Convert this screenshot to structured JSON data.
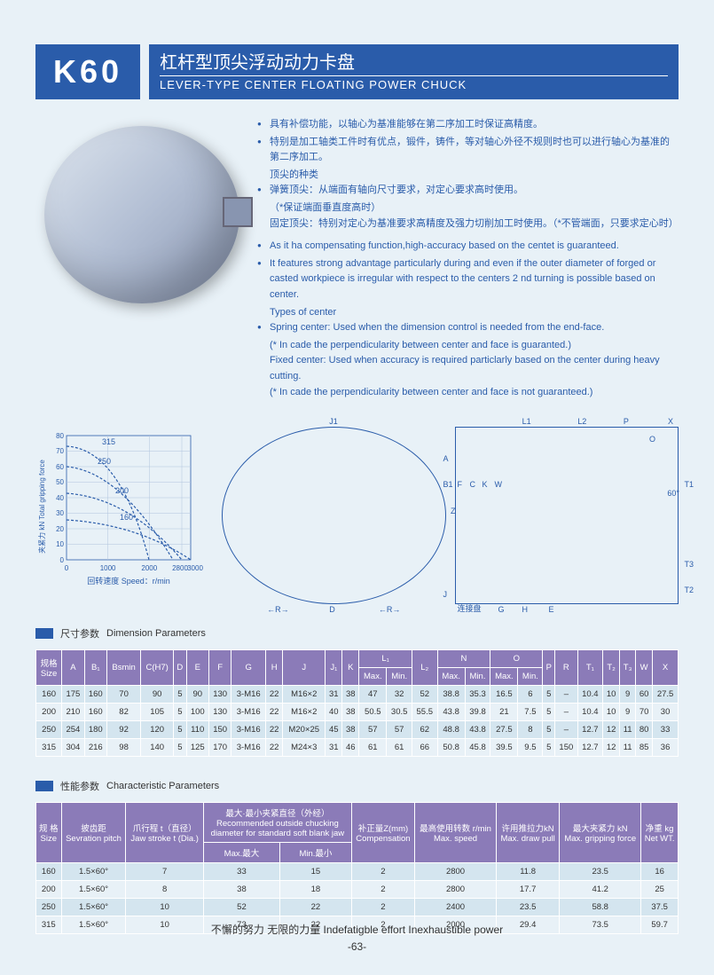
{
  "header": {
    "code": "K60",
    "title_cn": "杠杆型顶尖浮动动力卡盘",
    "title_en": "LEVER-TYPE CENTER FLOATING POWER CHUCK"
  },
  "features_cn": [
    "具有补偿功能，以轴心为基准能够在第二序加工时保证高精度。",
    "特别是加工轴类工件时有优点，锻件，铸件，等对轴心外径不规则时也可以进行轴心为基准的第二序加工。",
    "顶尖的种类",
    "弹簧顶尖：从端面有轴向尺寸要求，对定心要求高时使用。",
    "（*保证端面垂直度高时）",
    "固定顶尖：特别对定心为基准要求高精度及强力切削加工时使用。（*不管端面，只要求定心时）"
  ],
  "features_en": [
    "As it ha compensating function,high-accuracy based on the centet is guaranteed.",
    "It features strong advantage particularly during and even if the outer diameter of forged or casted workpiece is irregular with respect to the centers 2 nd turning is possible based on center.",
    "Types of center",
    "Spring center: Used when the dimension control is needed from the end-face.",
    "(* In cade the perpendicularity between center and face is guaranted.)",
    "Fixed center:  Used when accuracy is required particlarly based on the center during heavy cutting.",
    "(* In cade the perpendicularity between center and face is not guaranteed.)"
  ],
  "chart": {
    "y_label_cn": "夹紧力  kN  Total gripping force",
    "x_label": "回转速度   Speed：r/min",
    "y_ticks": [
      0,
      10,
      20,
      30,
      40,
      50,
      60,
      70,
      80
    ],
    "x_ticks": [
      0,
      1000,
      2000,
      2800,
      3000
    ],
    "curves": [
      "315",
      "250",
      "200",
      "160"
    ],
    "line_color": "#2a5caa",
    "grid_color": "#b0c4de",
    "bg_color": "#e8f1f7"
  },
  "tech_labels": {
    "front": [
      "J1",
      "A",
      "B1",
      "F",
      "C",
      "K",
      "W",
      "Z",
      "J",
      "D",
      "R",
      "R",
      "连接盘",
      "G",
      "H",
      "E"
    ],
    "side": [
      "L1",
      "L2",
      "P",
      "X",
      "O",
      "60°",
      "T1",
      "T3",
      "T2"
    ]
  },
  "section1": {
    "cn": "尺寸参数",
    "en": "Dimension Parameters"
  },
  "section2": {
    "cn": "性能参数",
    "en": "Characteristic Parameters"
  },
  "dim_table": {
    "columns_r1": [
      "规格\nSize",
      "A",
      "B₁",
      "Bsmin",
      "C(H7)",
      "D",
      "E",
      "F",
      "G",
      "H",
      "J",
      "J₁",
      "K",
      "L₁",
      "",
      "L₂",
      "N",
      "",
      "O",
      "",
      "P",
      "R",
      "T₁",
      "T₂",
      "T₃",
      "W",
      "X"
    ],
    "columns_r2": [
      "",
      "",
      "",
      "",
      "",
      "",
      "",
      "",
      "",
      "",
      "",
      "",
      "",
      "Max.",
      "Min.",
      "",
      "Max.",
      "Min.",
      "Max.",
      "Min.",
      "",
      "",
      "",
      "",
      "",
      "",
      ""
    ],
    "rows": [
      [
        "160",
        "175",
        "160",
        "70",
        "90",
        "5",
        "90",
        "130",
        "3-M16",
        "22",
        "M16×2",
        "31",
        "38",
        "47",
        "32",
        "52",
        "38.8",
        "35.3",
        "16.5",
        "6",
        "5",
        "–",
        "10.4",
        "10",
        "9",
        "60",
        "27.5"
      ],
      [
        "200",
        "210",
        "160",
        "82",
        "105",
        "5",
        "100",
        "130",
        "3-M16",
        "22",
        "M16×2",
        "40",
        "38",
        "50.5",
        "30.5",
        "55.5",
        "43.8",
        "39.8",
        "21",
        "7.5",
        "5",
        "–",
        "10.4",
        "10",
        "9",
        "70",
        "30"
      ],
      [
        "250",
        "254",
        "180",
        "92",
        "120",
        "5",
        "110",
        "150",
        "3-M16",
        "22",
        "M20×25",
        "45",
        "38",
        "57",
        "57",
        "62",
        "48.8",
        "43.8",
        "27.5",
        "8",
        "5",
        "–",
        "12.7",
        "12",
        "11",
        "80",
        "33"
      ],
      [
        "315",
        "304",
        "216",
        "98",
        "140",
        "5",
        "125",
        "170",
        "3-M16",
        "22",
        "M24×3",
        "31",
        "46",
        "61",
        "61",
        "66",
        "50.8",
        "45.8",
        "39.5",
        "9.5",
        "5",
        "150",
        "12.7",
        "12",
        "11",
        "85",
        "36"
      ]
    ]
  },
  "char_table": {
    "columns_r1": [
      "规 格\nSize",
      "披齿距\nSevration pitch",
      "爪行程 t（直径）\nJaw stroke t (Dia.)",
      "最大·最小夹紧直径（外经）\nRecommended outside chucking\ndiameter for standard soft blank jaw",
      "",
      "补正量Z(mm)\nCompensation",
      "最高使用转数 r/min\nMax. speed",
      "许用推拉力kN\nMax. draw pull",
      "最大夹紧力 kN\nMax. gripping force",
      "净重 kg\nNet WT."
    ],
    "columns_r2": [
      "",
      "",
      "",
      "Max.最大",
      "Min.最小",
      "",
      "",
      "",
      "",
      ""
    ],
    "rows": [
      [
        "160",
        "1.5×60°",
        "7",
        "33",
        "15",
        "2",
        "2800",
        "11.8",
        "23.5",
        "16"
      ],
      [
        "200",
        "1.5×60°",
        "8",
        "38",
        "18",
        "2",
        "2800",
        "17.7",
        "41.2",
        "25"
      ],
      [
        "250",
        "1.5×60°",
        "10",
        "52",
        "22",
        "2",
        "2400",
        "23.5",
        "58.8",
        "37.5"
      ],
      [
        "315",
        "1.5×60°",
        "10",
        "73",
        "22",
        "2",
        "2000",
        "29.4",
        "73.5",
        "59.7"
      ]
    ]
  },
  "footer": {
    "slogan": "不懈的努力  无限的力量   Indefatigble effort  Inexhaustible power",
    "page": "-63-"
  }
}
